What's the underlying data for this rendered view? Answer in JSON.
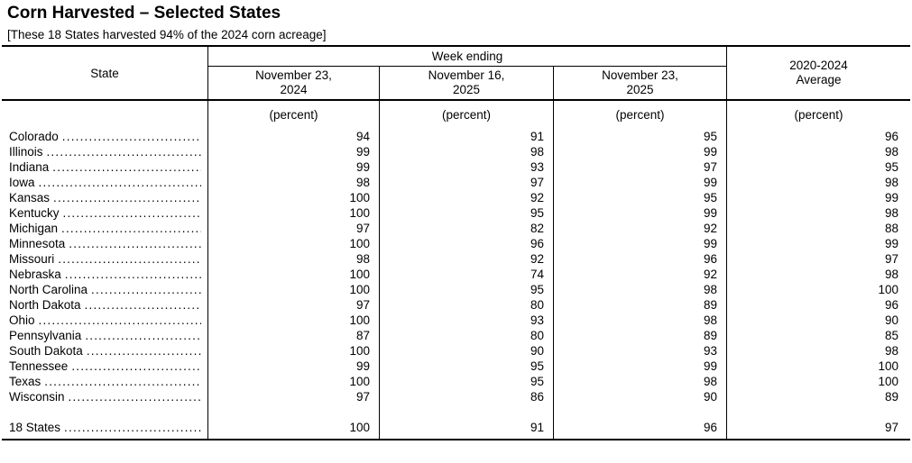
{
  "page": {
    "title": "Corn Harvested – Selected States",
    "subtitle": "[These 18 States harvested 94% of the 2024 corn acreage]"
  },
  "table": {
    "state_header": "State",
    "group_header": "Week ending",
    "col_headers": [
      "November 23,\n2024",
      "November 16,\n2025",
      "November 23,\n2025",
      "2020-2024\nAverage"
    ],
    "unit_label": "(percent)",
    "rows": [
      {
        "state": "Colorado",
        "values": [
          "94",
          "91",
          "95",
          "96"
        ]
      },
      {
        "state": "Illinois",
        "values": [
          "99",
          "98",
          "99",
          "98"
        ]
      },
      {
        "state": "Indiana",
        "values": [
          "99",
          "93",
          "97",
          "95"
        ]
      },
      {
        "state": "Iowa",
        "values": [
          "98",
          "97",
          "99",
          "98"
        ]
      },
      {
        "state": "Kansas",
        "values": [
          "100",
          "92",
          "95",
          "99"
        ]
      },
      {
        "state": "Kentucky",
        "values": [
          "100",
          "95",
          "99",
          "98"
        ]
      },
      {
        "state": "Michigan",
        "values": [
          "97",
          "82",
          "92",
          "88"
        ]
      },
      {
        "state": "Minnesota",
        "values": [
          "100",
          "96",
          "99",
          "99"
        ]
      },
      {
        "state": "Missouri",
        "values": [
          "98",
          "92",
          "96",
          "97"
        ]
      },
      {
        "state": "Nebraska",
        "values": [
          "100",
          "74",
          "92",
          "98"
        ]
      },
      {
        "state": "North Carolina",
        "values": [
          "100",
          "95",
          "98",
          "100"
        ]
      },
      {
        "state": "North Dakota",
        "values": [
          "97",
          "80",
          "89",
          "96"
        ]
      },
      {
        "state": "Ohio",
        "values": [
          "100",
          "93",
          "98",
          "90"
        ]
      },
      {
        "state": "Pennsylvania",
        "values": [
          "87",
          "80",
          "89",
          "85"
        ]
      },
      {
        "state": "South Dakota",
        "values": [
          "100",
          "90",
          "93",
          "98"
        ]
      },
      {
        "state": "Tennessee",
        "values": [
          "99",
          "95",
          "99",
          "100"
        ]
      },
      {
        "state": "Texas",
        "values": [
          "100",
          "95",
          "98",
          "100"
        ]
      },
      {
        "state": "Wisconsin",
        "values": [
          "97",
          "86",
          "90",
          "89"
        ]
      }
    ],
    "total_row": {
      "state": "18 States",
      "values": [
        "100",
        "91",
        "96",
        "97"
      ]
    }
  }
}
